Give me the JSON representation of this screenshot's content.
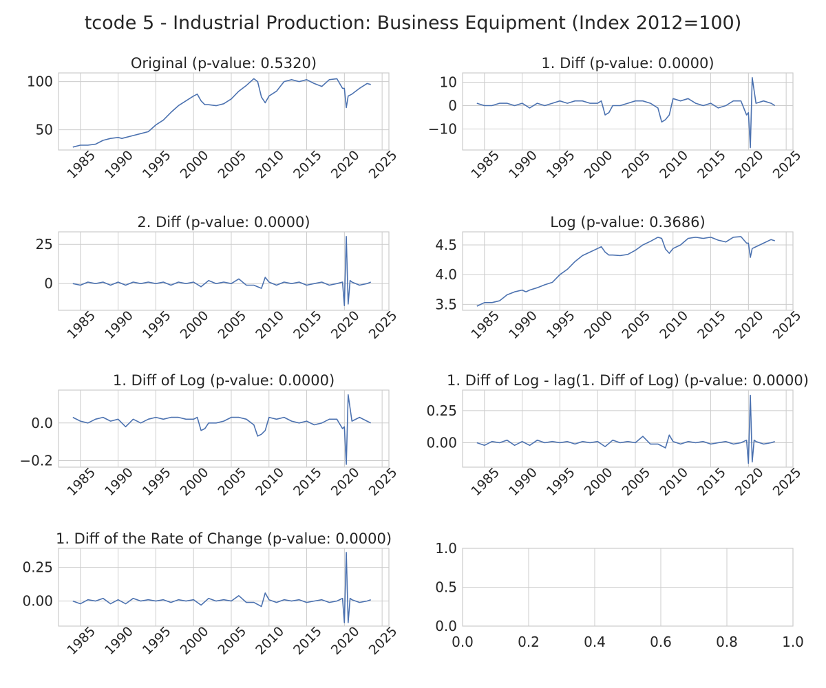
{
  "figure_title": "tcode 5 - Industrial Production: Business Equipment (Index 2012=100)",
  "colors": {
    "line": "#4c72b0",
    "grid": "#cccccc",
    "axes": "#cccccc",
    "text": "#262626"
  },
  "chart_data": [
    {
      "type": "line",
      "title": "Original (p-value: 0.5320)",
      "x_ticks": [
        "1985",
        "1990",
        "1995",
        "2000",
        "2005",
        "2010",
        "2015",
        "2020",
        "2025"
      ],
      "y_ticks": [
        "50",
        "100"
      ],
      "xlim": [
        1982.1,
        2025.9
      ],
      "ylim": [
        29,
        109
      ],
      "x": [
        1984,
        1985,
        1986,
        1987,
        1988,
        1989,
        1990,
        1990.5,
        1991,
        1992,
        1993,
        1994,
        1995,
        1996,
        1997,
        1998,
        1999,
        2000,
        2000.5,
        2001,
        2001.5,
        2002,
        2003,
        2004,
        2005,
        2006,
        2007,
        2008,
        2008.5,
        2009,
        2009.5,
        2010,
        2011,
        2012,
        2013,
        2014,
        2015,
        2016,
        2017,
        2018,
        2019,
        2019.75,
        2020,
        2020.25,
        2020.5,
        2021,
        2022,
        2023,
        2023.5
      ],
      "series": [
        {
          "values": [
            32,
            34,
            34,
            35,
            39,
            41,
            42,
            41,
            42,
            44,
            46,
            48,
            55,
            60,
            68,
            75,
            80,
            85,
            87,
            80,
            76,
            76,
            75,
            77,
            82,
            90,
            96,
            103,
            100,
            84,
            78,
            85,
            90,
            100,
            102,
            100,
            102,
            98,
            95,
            102,
            103,
            93,
            93,
            73,
            85,
            87,
            93,
            98,
            97
          ]
        }
      ]
    },
    {
      "type": "line",
      "title": "1. Diff (p-value: 0.0000)",
      "x_ticks": [
        "1985",
        "1990",
        "1995",
        "2000",
        "2005",
        "2010",
        "2015",
        "2020",
        "2025"
      ],
      "y_ticks": [
        "−10",
        "0",
        "10"
      ],
      "xlim": [
        1982.1,
        2025.9
      ],
      "ylim": [
        -19,
        14
      ],
      "x": [
        1984,
        1985,
        1986,
        1987,
        1988,
        1989,
        1990,
        1991,
        1992,
        1993,
        1994,
        1995,
        1996,
        1997,
        1998,
        1999,
        2000,
        2000.5,
        2001,
        2001.5,
        2002,
        2003,
        2004,
        2005,
        2006,
        2007,
        2008,
        2008.5,
        2009,
        2009.5,
        2010,
        2011,
        2012,
        2013,
        2014,
        2015,
        2016,
        2017,
        2018,
        2019,
        2019.75,
        2020,
        2020.25,
        2020.5,
        2021,
        2022,
        2023,
        2023.5
      ],
      "series": [
        {
          "values": [
            1,
            0,
            0,
            1,
            1,
            0,
            1,
            -1,
            1,
            0,
            1,
            2,
            1,
            2,
            2,
            1,
            1,
            2,
            -4,
            -3,
            0,
            0,
            1,
            2,
            2,
            1,
            -1,
            -7,
            -6,
            -4,
            3,
            2,
            3,
            1,
            0,
            1,
            -1,
            0,
            2,
            2,
            -4,
            -3,
            -18,
            12,
            1,
            2,
            1,
            0
          ]
        }
      ]
    },
    {
      "type": "line",
      "title": "2. Diff (p-value: 0.0000)",
      "x_ticks": [
        "1985",
        "1990",
        "1995",
        "2000",
        "2005",
        "2010",
        "2015",
        "2020",
        "2025"
      ],
      "y_ticks": [
        "0",
        "25"
      ],
      "xlim": [
        1982.1,
        2025.9
      ],
      "ylim": [
        -17,
        33
      ],
      "x": [
        1984,
        1985,
        1986,
        1987,
        1988,
        1989,
        1990,
        1991,
        1992,
        1993,
        1994,
        1995,
        1996,
        1997,
        1998,
        1999,
        2000,
        2001,
        2002,
        2003,
        2004,
        2005,
        2006,
        2007,
        2008,
        2009,
        2009.5,
        2010,
        2011,
        2012,
        2013,
        2014,
        2015,
        2016,
        2017,
        2018,
        2019,
        2019.75,
        2020,
        2020.25,
        2020.5,
        2020.75,
        2021,
        2022,
        2023,
        2023.5
      ],
      "series": [
        {
          "values": [
            0,
            -1,
            1,
            0,
            1,
            -1,
            1,
            -1,
            1,
            0,
            1,
            0,
            1,
            -1,
            1,
            0,
            1,
            -2,
            2,
            0,
            1,
            0,
            3,
            -1,
            -1,
            -3,
            4,
            1,
            -1,
            1,
            0,
            1,
            -1,
            0,
            1,
            -1,
            0,
            1,
            -14,
            30,
            -13,
            2,
            1,
            -1,
            0,
            1
          ]
        }
      ]
    },
    {
      "type": "line",
      "title": "Log (p-value: 0.3686)",
      "x_ticks": [
        "1985",
        "1990",
        "1995",
        "2000",
        "2005",
        "2010",
        "2015",
        "2020",
        "2025"
      ],
      "y_ticks": [
        "3.5",
        "4.0",
        "4.5"
      ],
      "xlim": [
        1982.1,
        2025.9
      ],
      "ylim": [
        3.4,
        4.72
      ],
      "x": [
        1984,
        1985,
        1986,
        1987,
        1988,
        1989,
        1990,
        1990.5,
        1991,
        1992,
        1993,
        1994,
        1995,
        1996,
        1997,
        1998,
        1999,
        2000,
        2000.5,
        2001,
        2001.5,
        2002,
        2003,
        2004,
        2005,
        2006,
        2007,
        2008,
        2008.5,
        2009,
        2009.5,
        2010,
        2011,
        2012,
        2013,
        2014,
        2015,
        2016,
        2017,
        2018,
        2019,
        2019.75,
        2020,
        2020.25,
        2020.5,
        2021,
        2022,
        2023,
        2023.5
      ],
      "series": [
        {
          "values": [
            3.47,
            3.53,
            3.53,
            3.56,
            3.66,
            3.71,
            3.74,
            3.71,
            3.74,
            3.78,
            3.83,
            3.87,
            4.0,
            4.09,
            4.22,
            4.32,
            4.38,
            4.44,
            4.47,
            4.38,
            4.33,
            4.33,
            4.32,
            4.34,
            4.41,
            4.5,
            4.56,
            4.63,
            4.61,
            4.43,
            4.36,
            4.44,
            4.5,
            4.61,
            4.63,
            4.61,
            4.63,
            4.58,
            4.55,
            4.63,
            4.64,
            4.53,
            4.53,
            4.29,
            4.44,
            4.47,
            4.53,
            4.59,
            4.57
          ]
        }
      ]
    },
    {
      "type": "line",
      "title": "1. Diff of Log (p-value: 0.0000)",
      "x_ticks": [
        "1985",
        "1990",
        "1995",
        "2000",
        "2005",
        "2010",
        "2015",
        "2020",
        "2025"
      ],
      "y_ticks": [
        "−0.2",
        "0.0"
      ],
      "xlim": [
        1982.1,
        2025.9
      ],
      "ylim": [
        -0.235,
        0.175
      ],
      "x": [
        1984,
        1985,
        1986,
        1987,
        1988,
        1989,
        1990,
        1991,
        1992,
        1993,
        1994,
        1995,
        1996,
        1997,
        1998,
        1999,
        2000,
        2000.5,
        2001,
        2001.5,
        2002,
        2003,
        2004,
        2005,
        2006,
        2007,
        2008,
        2008.5,
        2009,
        2009.5,
        2010,
        2011,
        2012,
        2013,
        2014,
        2015,
        2016,
        2017,
        2018,
        2019,
        2019.75,
        2020,
        2020.25,
        2020.5,
        2021,
        2022,
        2023,
        2023.5
      ],
      "series": [
        {
          "values": [
            0.03,
            0.01,
            0.0,
            0.02,
            0.03,
            0.01,
            0.02,
            -0.02,
            0.02,
            0.0,
            0.02,
            0.03,
            0.02,
            0.03,
            0.03,
            0.02,
            0.02,
            0.03,
            -0.04,
            -0.03,
            0.0,
            0.0,
            0.01,
            0.03,
            0.03,
            0.02,
            -0.01,
            -0.07,
            -0.06,
            -0.04,
            0.03,
            0.02,
            0.03,
            0.01,
            0.0,
            0.01,
            -0.01,
            0.0,
            0.02,
            0.02,
            -0.03,
            -0.02,
            -0.22,
            0.15,
            0.01,
            0.03,
            0.01,
            0.0
          ]
        }
      ]
    },
    {
      "type": "line",
      "title": "1. Diff of Log - lag(1. Diff of Log) (p-value: 0.0000)",
      "x_ticks": [
        "1985",
        "1990",
        "1995",
        "2000",
        "2005",
        "2010",
        "2015",
        "2020",
        "2025"
      ],
      "y_ticks": [
        "0.00",
        "0.25"
      ],
      "xlim": [
        1982.1,
        2025.9
      ],
      "ylim": [
        -0.19,
        0.41
      ],
      "x": [
        1984,
        1985,
        1986,
        1987,
        1988,
        1989,
        1990,
        1991,
        1992,
        1993,
        1994,
        1995,
        1996,
        1997,
        1998,
        1999,
        2000,
        2001,
        2002,
        2003,
        2004,
        2005,
        2006,
        2007,
        2008,
        2009,
        2009.5,
        2010,
        2011,
        2012,
        2013,
        2014,
        2015,
        2016,
        2017,
        2018,
        2019,
        2019.75,
        2020,
        2020.25,
        2020.5,
        2020.75,
        2021,
        2022,
        2023,
        2023.5
      ],
      "series": [
        {
          "values": [
            0.0,
            -0.02,
            0.01,
            0.0,
            0.02,
            -0.02,
            0.01,
            -0.02,
            0.02,
            0.0,
            0.01,
            0.0,
            0.01,
            -0.01,
            0.01,
            0.0,
            0.01,
            -0.03,
            0.02,
            0.0,
            0.01,
            0.0,
            0.05,
            -0.01,
            -0.01,
            -0.04,
            0.06,
            0.01,
            -0.01,
            0.01,
            0.0,
            0.01,
            -0.01,
            0.0,
            0.01,
            -0.01,
            0.0,
            0.02,
            -0.16,
            0.37,
            -0.15,
            0.02,
            0.01,
            -0.01,
            0.0,
            0.01
          ]
        }
      ]
    },
    {
      "type": "line",
      "title": "1. Diff of the Rate of Change (p-value: 0.0000)",
      "x_ticks": [
        "1985",
        "1990",
        "1995",
        "2000",
        "2005",
        "2010",
        "2015",
        "2020",
        "2025"
      ],
      "y_ticks": [
        "0.00",
        "0.25"
      ],
      "xlim": [
        1982.1,
        2025.9
      ],
      "ylim": [
        -0.185,
        0.39
      ],
      "x": [
        1984,
        1985,
        1986,
        1987,
        1988,
        1989,
        1990,
        1991,
        1992,
        1993,
        1994,
        1995,
        1996,
        1997,
        1998,
        1999,
        2000,
        2001,
        2002,
        2003,
        2004,
        2005,
        2006,
        2007,
        2008,
        2009,
        2009.5,
        2010,
        2011,
        2012,
        2013,
        2014,
        2015,
        2016,
        2017,
        2018,
        2019,
        2019.75,
        2020,
        2020.25,
        2020.5,
        2020.75,
        2021,
        2022,
        2023,
        2023.5
      ],
      "series": [
        {
          "values": [
            0.0,
            -0.02,
            0.01,
            0.0,
            0.02,
            -0.02,
            0.01,
            -0.02,
            0.02,
            0.0,
            0.01,
            0.0,
            0.01,
            -0.01,
            0.01,
            0.0,
            0.01,
            -0.03,
            0.02,
            0.0,
            0.01,
            0.0,
            0.04,
            -0.01,
            -0.01,
            -0.04,
            0.06,
            0.01,
            -0.01,
            0.01,
            0.0,
            0.01,
            -0.01,
            0.0,
            0.01,
            -0.01,
            0.0,
            0.02,
            -0.16,
            0.36,
            -0.16,
            0.02,
            0.01,
            -0.01,
            0.0,
            0.01
          ]
        }
      ]
    },
    {
      "type": "line",
      "title": "",
      "x_ticks": [
        "0.0",
        "0.2",
        "0.4",
        "0.6",
        "0.8",
        "1.0"
      ],
      "y_ticks": [
        "0.0",
        "0.5",
        "1.0"
      ],
      "xlim": [
        0,
        1
      ],
      "ylim": [
        0,
        1
      ],
      "x": [],
      "series": []
    }
  ]
}
